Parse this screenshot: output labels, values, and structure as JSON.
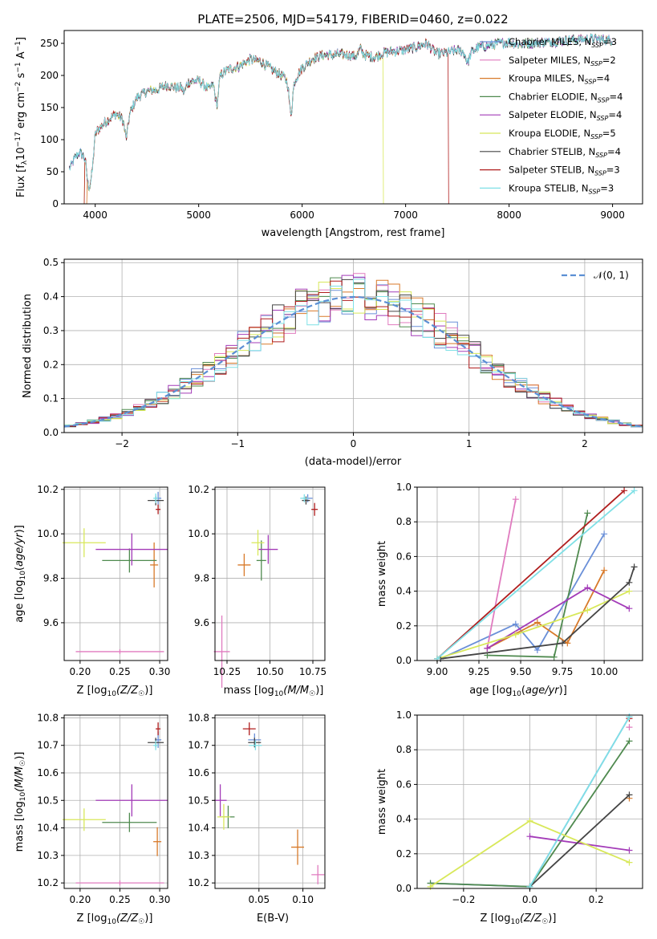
{
  "chart_data": [
    {
      "type": "line",
      "title": "PLATE=2506, MJD=54179, FIBERID=0460, z=0.022",
      "xlabel": "wavelength [Angstrom, rest frame]",
      "ylabel": "Flux [f$_\\lambda$10$^{-17}$ erg cm$^{-2}$ s$^{-1}$ A$^{-1}$]",
      "ylabel_text": "Flux [fλ10−17 erg cm−2 s−1 A−1]",
      "xlim": [
        3700,
        9290
      ],
      "ylim": [
        0,
        270
      ],
      "xticks": [
        4000,
        5000,
        6000,
        7000,
        8000,
        9000
      ],
      "yticks": [
        0,
        50,
        100,
        150,
        200,
        250
      ],
      "legend": "upper right",
      "legend_entries": [
        "Chabrier MILES, N_SSP=3",
        "Salpeter MILES, N_SSP=2",
        "Kroupa MILES, N_SSP=4",
        "Chabrier ELODIE, N_SSP=4",
        "Salpeter ELODIE, N_SSP=4",
        "Kroupa ELODIE, N_SSP=5",
        "Chabrier STELIB, N_SSP=4",
        "Salpeter STELIB, N_SSP=3",
        "Kroupa STELIB, N_SSP=3"
      ],
      "legend_names": [
        "Chabrier MILES, N",
        "Salpeter MILES, N",
        "Kroupa MILES, N",
        "Chabrier ELODIE, N",
        "Salpeter ELODIE, N",
        "Kroupa ELODIE, N",
        "Chabrier STELIB, N",
        "Salpeter STELIB, N",
        "Kroupa STELIB, N"
      ],
      "legend_nums": [
        "=3",
        "=2",
        "=4",
        "=4",
        "=4",
        "=5",
        "=4",
        "=3",
        "=3"
      ],
      "subscript": "SSP",
      "spectrum_x": [
        3750,
        3800,
        3850,
        3900,
        3950,
        4000,
        4100,
        4200,
        4300,
        4400,
        4500,
        4600,
        4700,
        4800,
        4900,
        5000,
        5100,
        5200,
        5300,
        5400,
        5500,
        5600,
        5700,
        5800,
        5900,
        6000,
        6100,
        6200,
        6300,
        6400,
        6500,
        6600,
        6700,
        6800,
        6900,
        7000,
        7100,
        7200,
        7300,
        7400,
        7500,
        7600,
        7700,
        7800,
        7900,
        8000,
        8100,
        8200,
        8300,
        8400,
        8500,
        8600,
        8700,
        8800,
        8900,
        9000
      ],
      "spectrum_y": [
        55,
        70,
        80,
        72,
        62,
        110,
        128,
        140,
        128,
        165,
        175,
        178,
        185,
        180,
        190,
        192,
        178,
        200,
        210,
        215,
        225,
        222,
        210,
        200,
        185,
        212,
        226,
        232,
        232,
        233,
        230,
        232,
        228,
        236,
        238,
        240,
        244,
        250,
        234,
        235,
        240,
        232,
        244,
        246,
        250,
        252,
        248,
        250,
        252,
        252,
        254,
        255,
        256,
        257,
        256,
        255
      ],
      "truncations": [
        {
          "model": "Kroupa MILES",
          "start": 3920,
          "end": null
        },
        {
          "model": "Kroupa ELODIE",
          "start": 3900,
          "end": 6780
        },
        {
          "model": "Salpeter STELIB",
          "start": 3900,
          "end": 7410
        }
      ]
    },
    {
      "type": "histogram",
      "xlabel": "(data-model)/error",
      "ylabel": "Normed distribution",
      "xlim": [
        -2.5,
        2.5
      ],
      "ylim": [
        0,
        0.51
      ],
      "xticks": [
        -2,
        -1,
        0,
        1,
        2
      ],
      "yticks": [
        0.0,
        0.1,
        0.2,
        0.3,
        0.4,
        0.5
      ],
      "grid": true,
      "legend": "upper right",
      "legend_label": "N(0,1)",
      "reference_curve": "gaussian mean 0 sigma 1",
      "bin_width": 0.1,
      "bins_from": -2.5
    },
    {
      "type": "scatter",
      "xlabel": "Z [log10(Z/Z☉)]",
      "ylabel": "age  [log10(age/yr)]",
      "xlim": [
        0.18,
        0.31
      ],
      "ylim": [
        9.43,
        10.21
      ],
      "xticks": [
        0.2,
        0.25,
        0.3
      ],
      "xticklabels": [
        "0.20",
        "0.25",
        "0.30"
      ],
      "yticks": [
        9.6,
        9.8,
        10.0,
        10.2
      ],
      "points": [
        {
          "model": "Chabrier MILES",
          "x": 0.298,
          "y": 10.16
        },
        {
          "model": "Salpeter MILES",
          "x": 0.25,
          "y": 9.47
        },
        {
          "model": "Kroupa MILES",
          "x": 0.293,
          "y": 9.86
        },
        {
          "model": "Chabrier ELODIE",
          "x": 0.262,
          "y": 9.88
        },
        {
          "model": "Salpeter ELODIE",
          "x": 0.265,
          "y": 9.93
        },
        {
          "model": "Kroupa ELODIE",
          "x": 0.205,
          "y": 9.96
        },
        {
          "model": "Chabrier STELIB",
          "x": 0.295,
          "y": 10.15
        },
        {
          "model": "Salpeter STELIB",
          "x": 0.298,
          "y": 10.11
        },
        {
          "model": "Kroupa STELIB",
          "x": 0.295,
          "y": 10.16
        }
      ]
    },
    {
      "type": "scatter",
      "xlabel": "mass [log10(M/M☉)]",
      "ylabel": "",
      "xlim": [
        10.18,
        10.82
      ],
      "ylim": [
        9.43,
        10.21
      ],
      "xticks": [
        10.25,
        10.5,
        10.75
      ],
      "xticklabels": [
        "10.25",
        "10.50",
        "10.75"
      ],
      "yticks": [
        9.6,
        9.8,
        10.0,
        10.2
      ],
      "points": [
        {
          "model": "Chabrier MILES",
          "x": 10.72,
          "y": 10.16
        },
        {
          "model": "Salpeter MILES",
          "x": 10.22,
          "y": 9.47
        },
        {
          "model": "Kroupa MILES",
          "x": 10.35,
          "y": 9.86
        },
        {
          "model": "Chabrier ELODIE",
          "x": 10.45,
          "y": 9.88
        },
        {
          "model": "Salpeter ELODIE",
          "x": 10.49,
          "y": 9.93
        },
        {
          "model": "Kroupa ELODIE",
          "x": 10.43,
          "y": 9.96
        },
        {
          "model": "Chabrier STELIB",
          "x": 10.71,
          "y": 10.15
        },
        {
          "model": "Salpeter STELIB",
          "x": 10.76,
          "y": 10.11
        },
        {
          "model": "Kroupa STELIB",
          "x": 10.7,
          "y": 10.16
        }
      ]
    },
    {
      "type": "line",
      "xlabel": "age  [log10(age/yr)]",
      "ylabel": "mass weight",
      "xlim": [
        8.88,
        10.23
      ],
      "ylim": [
        0,
        1
      ],
      "xticks": [
        9.0,
        9.25,
        9.5,
        9.75,
        10.0
      ],
      "xticklabels": [
        "9.00",
        "9.25",
        "9.50",
        "9.75",
        "10.00"
      ],
      "yticks": [
        0.0,
        0.2,
        0.4,
        0.6,
        0.8,
        1.0
      ],
      "series": [
        {
          "model": "Chabrier MILES",
          "x": [
            9.02,
            9.47,
            9.6,
            10.0
          ],
          "y": [
            0.01,
            0.21,
            0.06,
            0.73
          ]
        },
        {
          "model": "Salpeter MILES",
          "x": [
            9.3,
            9.47
          ],
          "y": [
            0.07,
            0.93
          ]
        },
        {
          "model": "Kroupa MILES",
          "x": [
            9.3,
            9.6,
            9.78,
            10.0
          ],
          "y": [
            0.07,
            0.22,
            0.1,
            0.52
          ]
        },
        {
          "model": "Chabrier ELODIE",
          "x": [
            9.3,
            9.7,
            9.9
          ],
          "y": [
            0.03,
            0.02,
            0.85
          ]
        },
        {
          "model": "Salpeter ELODIE",
          "x": [
            9.3,
            9.9,
            10.15
          ],
          "y": [
            0.07,
            0.42,
            0.3
          ]
        },
        {
          "model": "Kroupa ELODIE",
          "x": [
            9.0,
            9.47,
            9.9,
            10.15
          ],
          "y": [
            0.01,
            0.15,
            0.29,
            0.4
          ]
        },
        {
          "model": "Chabrier STELIB",
          "x": [
            9.02,
            9.75,
            10.15,
            10.18
          ],
          "y": [
            0.01,
            0.1,
            0.45,
            0.54
          ]
        },
        {
          "model": "Salpeter STELIB",
          "x": [
            9.0,
            10.12
          ],
          "y": [
            0.01,
            0.98
          ]
        },
        {
          "model": "Kroupa STELIB",
          "x": [
            9.0,
            10.18
          ],
          "y": [
            0.01,
            0.98
          ]
        }
      ]
    },
    {
      "type": "scatter",
      "xlabel": "Z [log10(Z/Z☉)]",
      "ylabel": "mass [log10(M/M☉)]",
      "xlim": [
        0.18,
        0.31
      ],
      "ylim": [
        10.18,
        10.81
      ],
      "xticks": [
        0.2,
        0.25,
        0.3
      ],
      "xticklabels": [
        "0.20",
        "0.25",
        "0.30"
      ],
      "yticks": [
        10.2,
        10.3,
        10.4,
        10.5,
        10.6,
        10.7,
        10.8
      ],
      "points": [
        {
          "model": "Chabrier MILES",
          "x": 0.298,
          "y": 10.72
        },
        {
          "model": "Salpeter MILES",
          "x": 0.25,
          "y": 10.2
        },
        {
          "model": "Kroupa MILES",
          "x": 0.297,
          "y": 10.35
        },
        {
          "model": "Chabrier ELODIE",
          "x": 0.262,
          "y": 10.42
        },
        {
          "model": "Salpeter ELODIE",
          "x": 0.265,
          "y": 10.5
        },
        {
          "model": "Kroupa ELODIE",
          "x": 0.205,
          "y": 10.43
        },
        {
          "model": "Chabrier STELIB",
          "x": 0.295,
          "y": 10.71
        },
        {
          "model": "Salpeter STELIB",
          "x": 0.298,
          "y": 10.76
        },
        {
          "model": "Kroupa STELIB",
          "x": 0.295,
          "y": 10.7
        }
      ]
    },
    {
      "type": "scatter",
      "xlabel": "E(B-V)",
      "ylabel": "",
      "xlim": [
        0.0,
        0.125
      ],
      "ylim": [
        10.18,
        10.81
      ],
      "xticks": [
        0.05,
        0.1
      ],
      "xticklabels": [
        "0.05",
        "0.10"
      ],
      "yticks": [
        10.2,
        10.3,
        10.4,
        10.5,
        10.6,
        10.7,
        10.8
      ],
      "points": [
        {
          "model": "Chabrier MILES",
          "x": 0.045,
          "y": 10.72
        },
        {
          "model": "Salpeter MILES",
          "x": 0.117,
          "y": 10.23
        },
        {
          "model": "Kroupa MILES",
          "x": 0.094,
          "y": 10.33
        },
        {
          "model": "Chabrier ELODIE",
          "x": 0.015,
          "y": 10.44
        },
        {
          "model": "Salpeter ELODIE",
          "x": 0.006,
          "y": 10.5
        },
        {
          "model": "Kroupa ELODIE",
          "x": 0.01,
          "y": 10.44
        },
        {
          "model": "Chabrier STELIB",
          "x": 0.045,
          "y": 10.71
        },
        {
          "model": "Salpeter STELIB",
          "x": 0.039,
          "y": 10.76
        },
        {
          "model": "Kroupa STELIB",
          "x": 0.046,
          "y": 10.7
        }
      ]
    },
    {
      "type": "line",
      "xlabel": "Z [log10(Z/Z☉)]",
      "ylabel": "mass weight",
      "xlim": [
        -0.34,
        0.34
      ],
      "ylim": [
        0,
        1
      ],
      "xticks": [
        -0.2,
        0.0,
        0.2
      ],
      "xticklabels": [
        "−0.2",
        "0.0",
        "0.2"
      ],
      "yticks": [
        0.0,
        0.2,
        0.4,
        0.6,
        0.8,
        1.0
      ],
      "series": [
        {
          "model": "Chabrier MILES",
          "x": [
            -0.3,
            0.0,
            0.3
          ],
          "y": [
            0.03,
            0.01,
            0.99
          ]
        },
        {
          "model": "Salpeter MILES",
          "x": [
            0.3
          ],
          "y": [
            0.93
          ]
        },
        {
          "model": "Kroupa MILES",
          "x": [
            0.3
          ],
          "y": [
            0.52
          ]
        },
        {
          "model": "Chabrier ELODIE",
          "x": [
            -0.3,
            0.0,
            0.3
          ],
          "y": [
            0.03,
            0.01,
            0.85
          ]
        },
        {
          "model": "Salpeter ELODIE",
          "x": [
            0.0,
            0.3
          ],
          "y": [
            0.3,
            0.22
          ]
        },
        {
          "model": "Kroupa ELODIE",
          "x": [
            -0.3,
            0.0,
            0.3
          ],
          "y": [
            0.01,
            0.39,
            0.15
          ]
        },
        {
          "model": "Chabrier STELIB",
          "x": [
            0.0,
            0.3
          ],
          "y": [
            0.01,
            0.54
          ]
        },
        {
          "model": "Salpeter STELIB",
          "x": [
            0.3
          ],
          "y": [
            0.98
          ]
        },
        {
          "model": "Kroupa STELIB",
          "x": [
            0.0,
            0.3
          ],
          "y": [
            0.01,
            0.99
          ]
        }
      ]
    }
  ],
  "colors": {
    "Chabrier MILES": "#6a8fd8",
    "Salpeter MILES": "#e07bbf",
    "Kroupa MILES": "#d87a2a",
    "Chabrier ELODIE": "#4f8a4f",
    "Salpeter ELODIE": "#a33bb8",
    "Kroupa ELODIE": "#d8e85a",
    "Chabrier STELIB": "#444444",
    "Salpeter STELIB": "#b01e1e",
    "Kroupa STELIB": "#7fe0e6",
    "reference": "#5b8fd4",
    "grid": "#b0b0b0"
  },
  "labels": {
    "p1_ylabel": "Flux [f",
    "p1_ylabel_lambda": "λ",
    "p1_ylabel_10": "10",
    "p1_ylabel_exp1": "−17",
    "p1_ylabel_mid": " erg cm",
    "p1_ylabel_exp2": "−2",
    "p1_ylabel_s": " s",
    "p1_ylabel_exp3": "−1",
    "p1_ylabel_a": " A",
    "p1_ylabel_exp4": "−1",
    "p1_ylabel_end": "]",
    "age_label_pre": "age  [log",
    "log_sub": "10",
    "age_label_post": "(age/yr)]",
    "age_label_italic": "age/yr",
    "z_label_pre": "Z [log",
    "z_label_post": "(Z/Z",
    "sun": "☉",
    "mass_label_pre": "mass [log",
    "mass_label_post": "(M/M",
    "close": ")]",
    "normal_label": "𝒩(0, 1)"
  }
}
